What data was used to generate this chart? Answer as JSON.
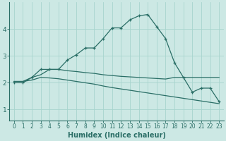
{
  "xlabel": "Humidex (Indice chaleur)",
  "ylabel": "",
  "background_color": "#cce8e4",
  "grid_color": "#a8d4ce",
  "line_color": "#2a6e66",
  "x": [
    0,
    1,
    2,
    3,
    4,
    5,
    6,
    7,
    8,
    9,
    10,
    11,
    12,
    13,
    14,
    15,
    16,
    17,
    18,
    19,
    20,
    21,
    22,
    23
  ],
  "line1": [
    2.0,
    2.0,
    2.2,
    2.5,
    2.5,
    2.5,
    2.85,
    3.05,
    3.3,
    3.3,
    3.65,
    4.05,
    4.05,
    4.35,
    4.5,
    4.55,
    4.1,
    3.65,
    2.75,
    2.2,
    1.65,
    1.8,
    1.8,
    1.3
  ],
  "line2": [
    2.05,
    2.05,
    2.2,
    2.3,
    2.5,
    2.5,
    2.45,
    2.42,
    2.38,
    2.35,
    2.3,
    2.27,
    2.24,
    2.22,
    2.2,
    2.18,
    2.16,
    2.14,
    2.2,
    2.2,
    2.2,
    2.2,
    2.2,
    2.2
  ],
  "line3": [
    2.05,
    2.05,
    2.1,
    2.2,
    2.18,
    2.15,
    2.1,
    2.05,
    2.0,
    1.95,
    1.88,
    1.82,
    1.77,
    1.72,
    1.67,
    1.62,
    1.57,
    1.52,
    1.47,
    1.42,
    1.37,
    1.32,
    1.27,
    1.22
  ],
  "ylim": [
    0.6,
    5.0
  ],
  "xlim": [
    -0.5,
    23.5
  ],
  "yticks": [
    1,
    2,
    3,
    4
  ],
  "xticks": [
    0,
    1,
    2,
    3,
    4,
    5,
    6,
    7,
    8,
    9,
    10,
    11,
    12,
    13,
    14,
    15,
    16,
    17,
    18,
    19,
    20,
    21,
    22,
    23
  ]
}
